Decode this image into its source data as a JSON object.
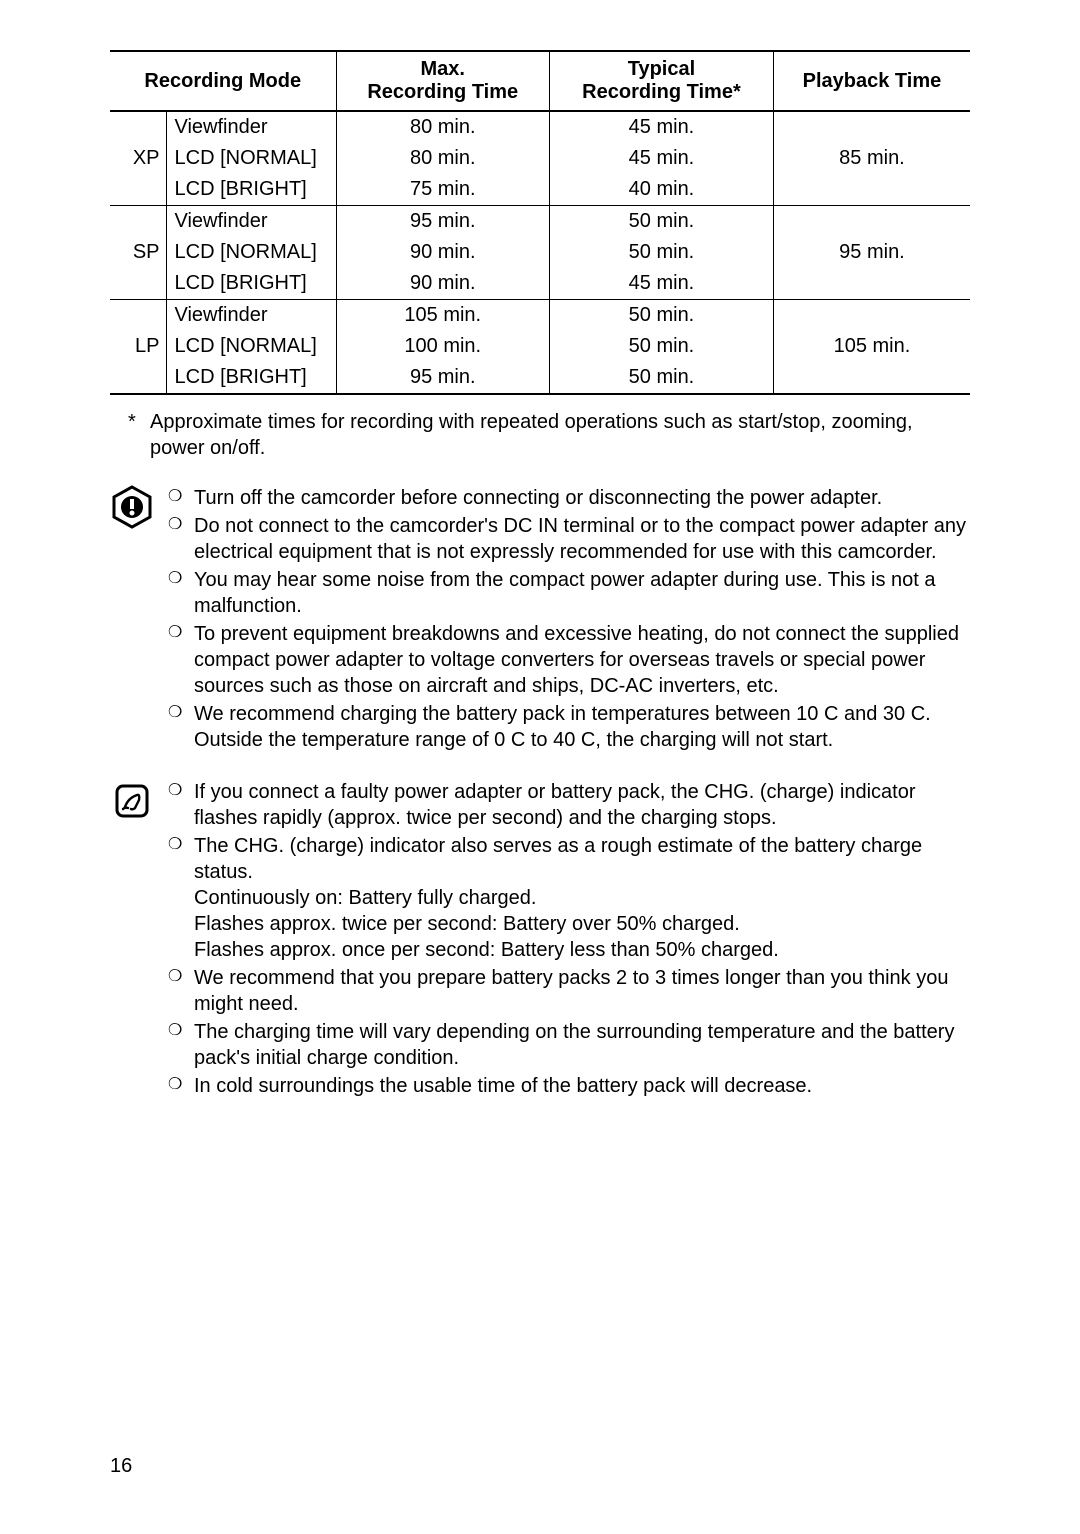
{
  "table": {
    "headers": {
      "mode": "Recording Mode",
      "max": "Max.",
      "max2": "Recording Time",
      "typical": "Typical",
      "typical2": "Recording Time*",
      "playback": "Playback Time"
    },
    "groups": [
      {
        "code": "XP",
        "playback": "85 min.",
        "rows": [
          {
            "display": "Viewfinder",
            "max": "80 min.",
            "typical": "45 min."
          },
          {
            "display": "LCD [NORMAL]",
            "max": "80 min.",
            "typical": "45 min."
          },
          {
            "display": "LCD [BRIGHT]",
            "max": "75 min.",
            "typical": "40 min."
          }
        ]
      },
      {
        "code": "SP",
        "playback": "95 min.",
        "rows": [
          {
            "display": "Viewfinder",
            "max": "95 min.",
            "typical": "50 min."
          },
          {
            "display": "LCD [NORMAL]",
            "max": "90 min.",
            "typical": "50 min."
          },
          {
            "display": "LCD [BRIGHT]",
            "max": "90 min.",
            "typical": "45 min."
          }
        ]
      },
      {
        "code": "LP",
        "playback": "105 min.",
        "rows": [
          {
            "display": "Viewfinder",
            "max": "105 min.",
            "typical": "50 min."
          },
          {
            "display": "LCD [NORMAL]",
            "max": "100 min.",
            "typical": "50 min."
          },
          {
            "display": "LCD [BRIGHT]",
            "max": "95 min.",
            "typical": "50 min."
          }
        ]
      }
    ]
  },
  "footnote": {
    "mark": "*",
    "text": "Approximate times for recording with repeated operations such as start/stop, zooming, power on/off."
  },
  "warnings": [
    "Turn off the camcorder before connecting or disconnecting the power adapter.",
    "Do not connect to the camcorder's DC IN terminal or to the compact power adapter any electrical equipment that is not expressly recommended for use with this camcorder.",
    "You may hear some noise from the compact power adapter during use. This is not a malfunction.",
    "To prevent equipment breakdowns and excessive heating, do not connect the supplied compact power adapter to voltage converters for overseas travels or special power sources such as those on aircraft and ships, DC-AC inverters, etc.",
    "We recommend charging the battery pack in temperatures between 10  C and 30  C. Outside the temperature range of 0  C to 40  C, the charging will not start."
  ],
  "notes": [
    {
      "text": "If you connect a faulty power adapter or battery pack, the CHG. (charge) indicator flashes rapidly (approx. twice per second) and the charging stops."
    },
    {
      "text": "The CHG. (charge) indicator also serves as a rough estimate of the battery charge status.",
      "lines": [
        "Continuously on: Battery fully charged.",
        "Flashes approx. twice per second: Battery over 50% charged.",
        "Flashes approx. once per second: Battery less than 50% charged."
      ]
    },
    {
      "text": "We recommend that you prepare battery packs 2 to 3 times longer than you think you might need."
    },
    {
      "text": "The charging time will vary depending on the surrounding temperature and the battery pack's initial charge condition."
    },
    {
      "text": "In cold surroundings the usable time of the battery pack will decrease."
    }
  ],
  "pageNumber": "16",
  "bulletChar": "❍"
}
